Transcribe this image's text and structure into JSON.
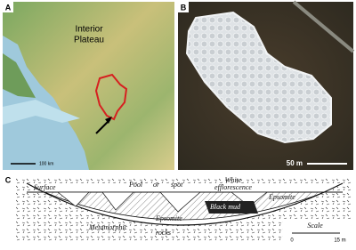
{
  "panel_a": {
    "label": "A",
    "region_lines": [
      "Interior",
      "Plateau"
    ],
    "scale_bar": "100 km"
  },
  "panel_b": {
    "label": "B",
    "scale_bar": "50 m"
  },
  "panel_c": {
    "label": "C",
    "labels": [
      "Surface",
      "Pool",
      "or",
      "spot",
      "White",
      "efflorescence",
      "Epsomite",
      "Black mud",
      "Epsomite",
      "Metamorphic",
      "rocks"
    ],
    "scale": {
      "title": "Scale",
      "start": "0",
      "end": "15 m"
    }
  }
}
